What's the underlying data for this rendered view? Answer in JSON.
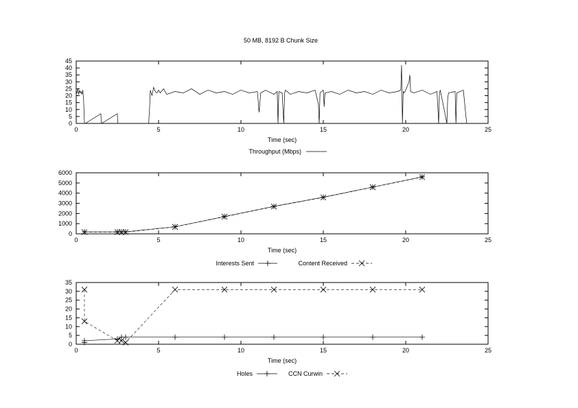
{
  "title": "50 MB, 8192 B Chunk Size",
  "chart_data": [
    {
      "type": "line",
      "xlabel": "Time (sec)",
      "ylabel": "",
      "xlim": [
        0,
        25
      ],
      "ylim": [
        0,
        45
      ],
      "xticks": [
        0,
        5,
        10,
        15,
        20,
        25
      ],
      "yticks": [
        0,
        5,
        10,
        15,
        20,
        25,
        30,
        35,
        40,
        45
      ],
      "grid": false,
      "legend_position": "bottom-center",
      "series": [
        {
          "name": "Throughput (Mbps)",
          "style": "solid",
          "marker": "none",
          "x": [
            0.0,
            0.05,
            0.1,
            0.15,
            0.2,
            0.25,
            0.3,
            0.35,
            0.4,
            0.45,
            0.5,
            0.55,
            1.5,
            1.52,
            1.54,
            2.5,
            2.52,
            2.54,
            4.4,
            4.45,
            4.5,
            4.6,
            4.7,
            4.8,
            4.9,
            5.0,
            5.1,
            5.3,
            5.5,
            6.0,
            6.5,
            7.0,
            7.5,
            8.0,
            8.5,
            9.0,
            9.5,
            10.0,
            10.5,
            11.0,
            11.1,
            11.2,
            11.5,
            12.0,
            12.2,
            12.25,
            12.3,
            12.5,
            12.6,
            12.65,
            12.7,
            13.0,
            13.5,
            14.0,
            14.5,
            14.7,
            14.75,
            14.8,
            14.9,
            15.0,
            15.05,
            15.1,
            15.5,
            16.0,
            16.5,
            17.0,
            17.5,
            18.0,
            18.5,
            19.0,
            19.5,
            19.7,
            19.75,
            19.8,
            19.85,
            19.9,
            20.0,
            20.2,
            20.25,
            20.3,
            20.5,
            21.0,
            21.5,
            21.9,
            22.0,
            22.05,
            22.1,
            22.5,
            22.55,
            22.6,
            23.0,
            23.05,
            23.1,
            23.5,
            23.7,
            23.75
          ],
          "y": [
            23,
            22,
            25,
            21,
            24,
            22,
            23,
            21,
            24,
            17,
            0,
            0,
            7,
            0,
            0,
            7,
            0,
            0,
            0,
            10,
            24,
            20,
            26,
            23,
            22,
            24,
            22,
            25,
            21,
            23,
            22,
            25,
            21,
            24,
            22,
            23,
            21,
            24,
            22,
            23,
            8,
            22,
            24,
            21,
            23,
            0,
            23,
            22,
            0,
            22,
            24,
            21,
            23,
            22,
            24,
            14,
            0,
            22,
            23,
            24,
            12,
            22,
            23,
            21,
            24,
            22,
            23,
            21,
            24,
            22,
            23,
            24,
            42,
            0,
            23,
            22,
            24,
            30,
            35,
            23,
            22,
            24,
            21,
            23,
            0,
            22,
            24,
            0,
            18,
            22,
            23,
            0,
            22,
            24,
            0,
            0
          ]
        }
      ]
    },
    {
      "type": "line",
      "xlabel": "Time (sec)",
      "ylabel": "",
      "xlim": [
        0,
        25
      ],
      "ylim": [
        0,
        6000
      ],
      "xticks": [
        0,
        5,
        10,
        15,
        20,
        25
      ],
      "yticks": [
        0,
        1000,
        2000,
        3000,
        4000,
        5000,
        6000
      ],
      "grid": false,
      "legend_position": "bottom-center",
      "series": [
        {
          "name": "Interests Sent",
          "style": "solid",
          "marker": "plus",
          "x": [
            0.5,
            2.5,
            2.75,
            3.0,
            6.0,
            9.0,
            12.0,
            15.0,
            18.0,
            21.0
          ],
          "y": [
            200,
            200,
            200,
            200,
            700,
            1700,
            2700,
            3600,
            4600,
            5600
          ]
        },
        {
          "name": "Content Received",
          "style": "dashed",
          "marker": "x",
          "x": [
            0.5,
            2.5,
            2.75,
            3.0,
            6.0,
            9.0,
            12.0,
            15.0,
            18.0,
            21.0
          ],
          "y": [
            170,
            170,
            170,
            170,
            680,
            1680,
            2680,
            3580,
            4580,
            5580
          ]
        }
      ]
    },
    {
      "type": "line",
      "xlabel": "Time (sec)",
      "ylabel": "",
      "xlim": [
        0,
        25
      ],
      "ylim": [
        0,
        35
      ],
      "xticks": [
        0,
        5,
        10,
        15,
        20,
        25
      ],
      "yticks": [
        0,
        5,
        10,
        15,
        20,
        25,
        30,
        35
      ],
      "grid": false,
      "legend_position": "bottom-center",
      "series": [
        {
          "name": "Holes",
          "style": "solid",
          "marker": "plus",
          "x": [
            0.5,
            0.5,
            2.5,
            2.75,
            3.0,
            6.0,
            9.0,
            12.0,
            15.0,
            18.0,
            21.0
          ],
          "y": [
            1,
            2,
            3,
            4,
            4,
            4,
            4,
            4,
            4,
            4,
            4
          ]
        },
        {
          "name": "CCN Curwin",
          "style": "dashed",
          "marker": "x",
          "x": [
            0.5,
            0.5,
            2.5,
            2.75,
            3.0,
            6.0,
            9.0,
            12.0,
            15.0,
            18.0,
            21.0
          ],
          "y": [
            31,
            13,
            2,
            2,
            1,
            31,
            31,
            31,
            31,
            31,
            31
          ]
        }
      ]
    }
  ]
}
